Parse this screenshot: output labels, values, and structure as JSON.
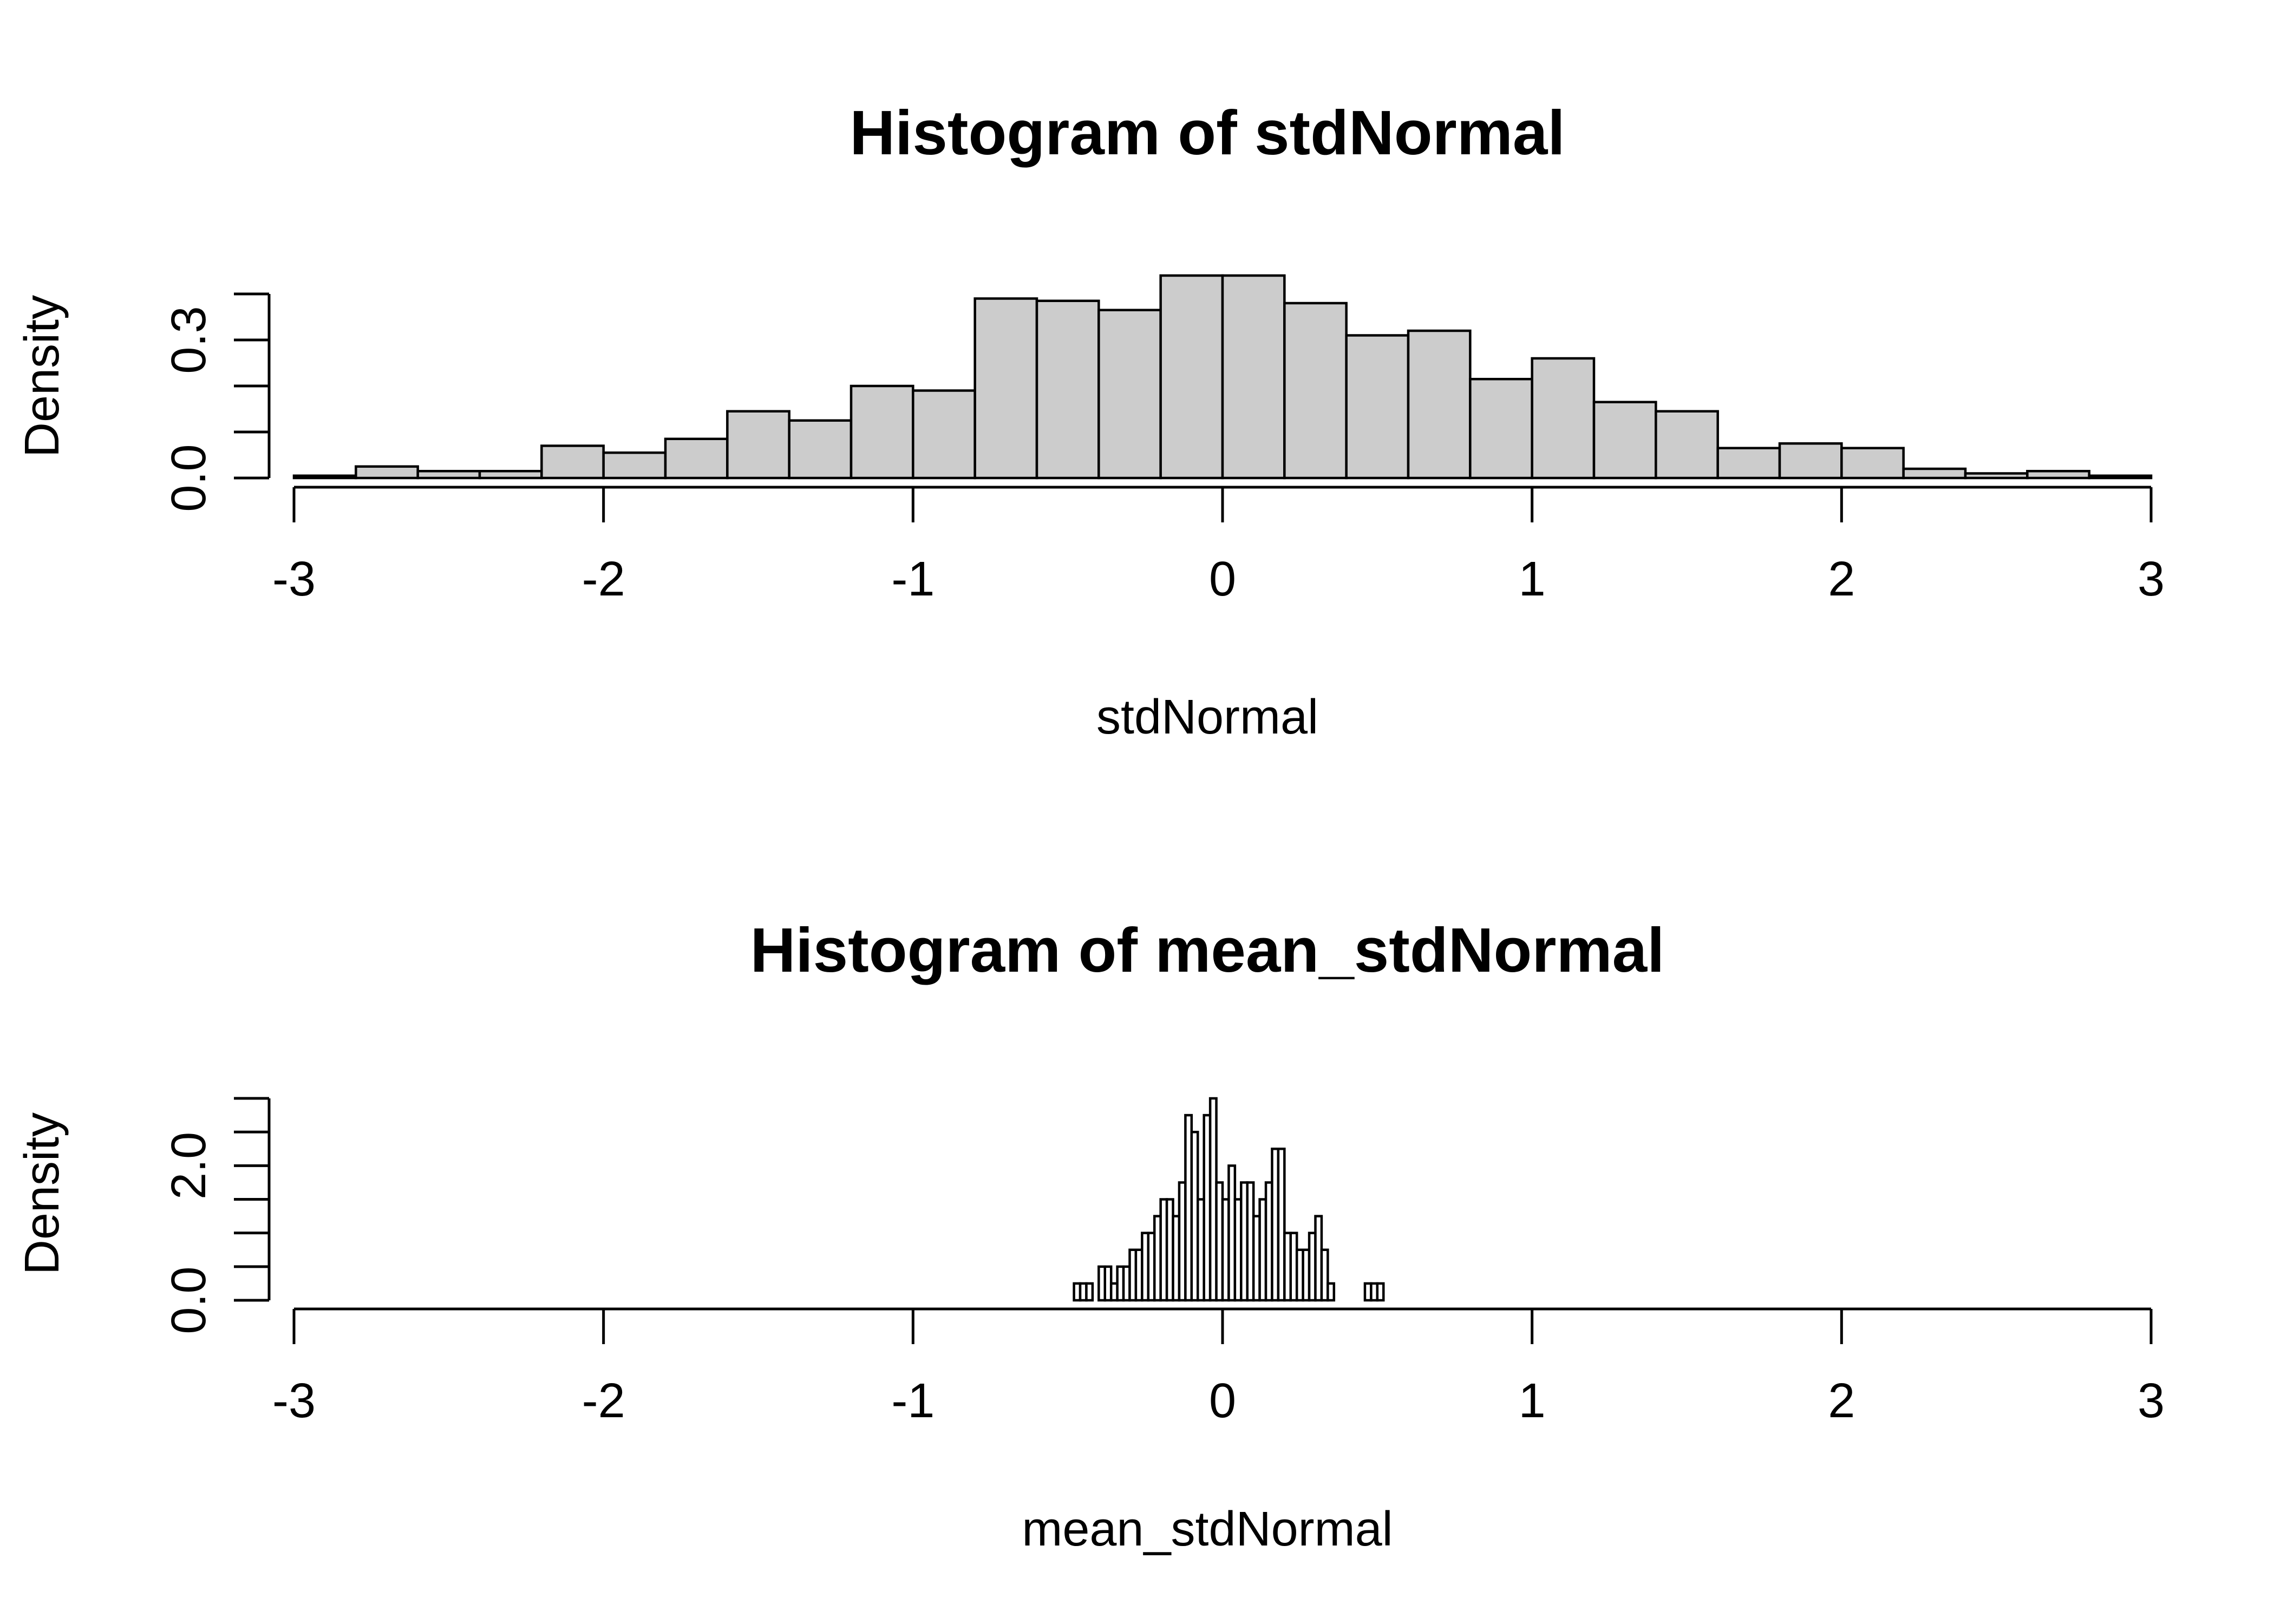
{
  "chart_data": [
    {
      "type": "bar",
      "title": "Histogram of stdNormal",
      "xlabel": "stdNormal",
      "ylabel": "Density",
      "xlim": [
        -3,
        3
      ],
      "ylim": [
        0,
        0.4
      ],
      "x_ticks": [
        "-3",
        "-2",
        "-1",
        "0",
        "1",
        "2",
        "3"
      ],
      "y_ticks": [
        "0.0",
        "0.3"
      ],
      "bar_color": "#cccccc",
      "bin_width": 0.2,
      "bin_starts": [
        -3.0,
        -2.8,
        -2.6,
        -2.4,
        -2.2,
        -2.0,
        -1.8,
        -1.6,
        -1.4,
        -1.2,
        -1.0,
        -0.8,
        -0.6,
        -0.4,
        -0.2,
        0.0,
        0.2,
        0.4,
        0.6,
        0.8,
        1.0,
        1.2,
        1.4,
        1.6,
        1.8,
        2.0,
        2.2,
        2.4,
        2.6,
        2.8
      ],
      "values": [
        0.005,
        0.025,
        0.015,
        0.015,
        0.07,
        0.055,
        0.085,
        0.145,
        0.125,
        0.2,
        0.19,
        0.39,
        0.385,
        0.365,
        0.44,
        0.44,
        0.38,
        0.31,
        0.32,
        0.215,
        0.26,
        0.165,
        0.145,
        0.065,
        0.075,
        0.065,
        0.02,
        0.01,
        0.015,
        0.005
      ]
    },
    {
      "type": "bar",
      "title": "Histogram of mean_stdNormal",
      "xlabel": "mean_stdNormal",
      "ylabel": "Density",
      "xlim": [
        -3,
        3
      ],
      "ylim": [
        0,
        3.0
      ],
      "x_ticks": [
        "-3",
        "-2",
        "-1",
        "0",
        "1",
        "2",
        "3"
      ],
      "y_ticks": [
        "0.0",
        "2.0"
      ],
      "bar_color": "#ffffff",
      "bin_width": 0.02,
      "bin_starts": [
        -0.48,
        -0.46,
        -0.44,
        -0.42,
        -0.4,
        -0.38,
        -0.36,
        -0.34,
        -0.32,
        -0.3,
        -0.28,
        -0.26,
        -0.24,
        -0.22,
        -0.2,
        -0.18,
        -0.16,
        -0.14,
        -0.12,
        -0.1,
        -0.08,
        -0.06,
        -0.04,
        -0.02,
        0.0,
        0.02,
        0.04,
        0.06,
        0.08,
        0.1,
        0.12,
        0.14,
        0.16,
        0.18,
        0.2,
        0.22,
        0.24,
        0.26,
        0.28,
        0.3,
        0.32,
        0.34,
        0.36,
        0.38,
        0.4,
        0.42,
        0.44,
        0.46,
        0.48,
        0.5
      ],
      "values": [
        0.25,
        0.25,
        0.25,
        0.0,
        0.5,
        0.5,
        0.25,
        0.5,
        0.5,
        0.75,
        0.75,
        1.0,
        1.0,
        1.25,
        1.5,
        1.5,
        1.25,
        1.75,
        2.75,
        2.5,
        1.5,
        2.75,
        3.0,
        1.75,
        1.5,
        2.0,
        1.5,
        1.75,
        1.75,
        1.25,
        1.5,
        1.75,
        2.25,
        2.25,
        1.0,
        1.0,
        0.75,
        0.75,
        1.0,
        1.25,
        0.75,
        0.25,
        0.0,
        0.0,
        0.0,
        0.0,
        0.0,
        0.25,
        0.25,
        0.25
      ]
    }
  ]
}
